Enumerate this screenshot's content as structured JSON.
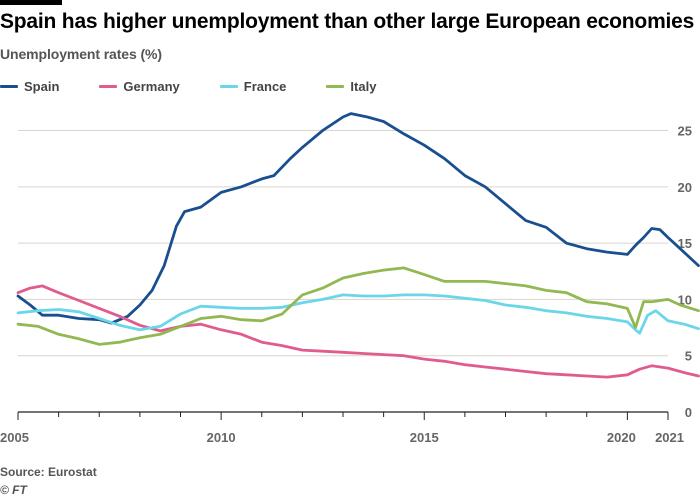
{
  "title": "Spain has higher unemployment than other large European economies",
  "subtitle": "Unemployment rates (%)",
  "source": "Source: Eurostat",
  "credit": "© FT",
  "colors": {
    "Spain": "#1a4f8f",
    "Germany": "#e05c8f",
    "France": "#6bd6e8",
    "Italy": "#93b852",
    "grid": "#d9d4cc",
    "axis": "#222222"
  },
  "chart_data": {
    "type": "line",
    "title": "Spain has higher unemployment than other large European economies",
    "ylabel": "Unemployment rates (%)",
    "xlabel": "",
    "xlim": [
      2005,
      2021
    ],
    "ylim": [
      0,
      27
    ],
    "x_ticks": [
      2005,
      2010,
      2015,
      2020,
      2021
    ],
    "y_ticks": [
      0,
      5,
      10,
      15,
      20,
      25
    ],
    "grid": "horizontal",
    "legend_position": "top",
    "series": [
      {
        "name": "Spain",
        "points": [
          [
            2005,
            10.3
          ],
          [
            2005.3,
            9.5
          ],
          [
            2005.6,
            8.6
          ],
          [
            2006,
            8.6
          ],
          [
            2006.5,
            8.3
          ],
          [
            2007,
            8.2
          ],
          [
            2007.3,
            7.9
          ],
          [
            2007.7,
            8.5
          ],
          [
            2008,
            9.5
          ],
          [
            2008.3,
            10.8
          ],
          [
            2008.6,
            13
          ],
          [
            2008.9,
            16.5
          ],
          [
            2009.1,
            17.8
          ],
          [
            2009.5,
            18.2
          ],
          [
            2010,
            19.5
          ],
          [
            2010.5,
            20
          ],
          [
            2011,
            20.7
          ],
          [
            2011.3,
            21
          ],
          [
            2011.7,
            22.5
          ],
          [
            2012,
            23.5
          ],
          [
            2012.5,
            25
          ],
          [
            2013,
            26.2
          ],
          [
            2013.2,
            26.5
          ],
          [
            2013.6,
            26.2
          ],
          [
            2014,
            25.8
          ],
          [
            2014.5,
            24.7
          ],
          [
            2015,
            23.7
          ],
          [
            2015.5,
            22.5
          ],
          [
            2016,
            21
          ],
          [
            2016.5,
            20
          ],
          [
            2017,
            18.5
          ],
          [
            2017.5,
            17
          ],
          [
            2018,
            16.4
          ],
          [
            2018.5,
            15
          ],
          [
            2019,
            14.5
          ],
          [
            2019.5,
            14.2
          ],
          [
            2020,
            14
          ],
          [
            2020.2,
            14.8
          ],
          [
            2020.4,
            15.5
          ],
          [
            2020.6,
            16.3
          ],
          [
            2020.8,
            16.2
          ],
          [
            2021,
            15.5
          ],
          [
            2021.3,
            14.5
          ],
          [
            2021.6,
            13.5
          ],
          [
            2021.75,
            13
          ]
        ]
      },
      {
        "name": "Germany",
        "points": [
          [
            2005,
            10.6
          ],
          [
            2005.3,
            11
          ],
          [
            2005.6,
            11.2
          ],
          [
            2006,
            10.6
          ],
          [
            2006.5,
            9.9
          ],
          [
            2007,
            9.2
          ],
          [
            2007.5,
            8.5
          ],
          [
            2008,
            7.7
          ],
          [
            2008.5,
            7.2
          ],
          [
            2009,
            7.6
          ],
          [
            2009.5,
            7.8
          ],
          [
            2010,
            7.3
          ],
          [
            2010.5,
            6.9
          ],
          [
            2011,
            6.2
          ],
          [
            2011.5,
            5.9
          ],
          [
            2012,
            5.5
          ],
          [
            2012.5,
            5.4
          ],
          [
            2013,
            5.3
          ],
          [
            2013.5,
            5.2
          ],
          [
            2014,
            5.1
          ],
          [
            2014.5,
            5
          ],
          [
            2015,
            4.7
          ],
          [
            2015.5,
            4.5
          ],
          [
            2016,
            4.2
          ],
          [
            2016.5,
            4
          ],
          [
            2017,
            3.8
          ],
          [
            2017.5,
            3.6
          ],
          [
            2018,
            3.4
          ],
          [
            2018.5,
            3.3
          ],
          [
            2019,
            3.2
          ],
          [
            2019.5,
            3.1
          ],
          [
            2020,
            3.3
          ],
          [
            2020.3,
            3.8
          ],
          [
            2020.6,
            4.1
          ],
          [
            2021,
            3.9
          ],
          [
            2021.4,
            3.5
          ],
          [
            2021.75,
            3.2
          ]
        ]
      },
      {
        "name": "France",
        "points": [
          [
            2005,
            8.8
          ],
          [
            2005.5,
            9
          ],
          [
            2006,
            9.1
          ],
          [
            2006.5,
            8.9
          ],
          [
            2007,
            8.3
          ],
          [
            2007.5,
            7.7
          ],
          [
            2008,
            7.3
          ],
          [
            2008.5,
            7.6
          ],
          [
            2009,
            8.7
          ],
          [
            2009.5,
            9.4
          ],
          [
            2010,
            9.3
          ],
          [
            2010.5,
            9.2
          ],
          [
            2011,
            9.2
          ],
          [
            2011.5,
            9.3
          ],
          [
            2012,
            9.7
          ],
          [
            2012.5,
            10
          ],
          [
            2013,
            10.4
          ],
          [
            2013.5,
            10.3
          ],
          [
            2014,
            10.3
          ],
          [
            2014.5,
            10.4
          ],
          [
            2015,
            10.4
          ],
          [
            2015.5,
            10.3
          ],
          [
            2016,
            10.1
          ],
          [
            2016.5,
            9.9
          ],
          [
            2017,
            9.5
          ],
          [
            2017.5,
            9.3
          ],
          [
            2018,
            9
          ],
          [
            2018.5,
            8.8
          ],
          [
            2019,
            8.5
          ],
          [
            2019.5,
            8.3
          ],
          [
            2020,
            8
          ],
          [
            2020.2,
            7.3
          ],
          [
            2020.3,
            7
          ],
          [
            2020.5,
            8.6
          ],
          [
            2020.7,
            9
          ],
          [
            2021,
            8.1
          ],
          [
            2021.4,
            7.8
          ],
          [
            2021.75,
            7.4
          ]
        ]
      },
      {
        "name": "Italy",
        "points": [
          [
            2005,
            7.8
          ],
          [
            2005.5,
            7.6
          ],
          [
            2006,
            6.9
          ],
          [
            2006.5,
            6.5
          ],
          [
            2007,
            6
          ],
          [
            2007.5,
            6.2
          ],
          [
            2008,
            6.6
          ],
          [
            2008.5,
            6.9
          ],
          [
            2009,
            7.6
          ],
          [
            2009.5,
            8.3
          ],
          [
            2010,
            8.5
          ],
          [
            2010.5,
            8.2
          ],
          [
            2011,
            8.1
          ],
          [
            2011.5,
            8.7
          ],
          [
            2012,
            10.4
          ],
          [
            2012.5,
            11
          ],
          [
            2013,
            11.9
          ],
          [
            2013.5,
            12.3
          ],
          [
            2014,
            12.6
          ],
          [
            2014.5,
            12.8
          ],
          [
            2015,
            12.2
          ],
          [
            2015.5,
            11.6
          ],
          [
            2016,
            11.6
          ],
          [
            2016.5,
            11.6
          ],
          [
            2017,
            11.4
          ],
          [
            2017.5,
            11.2
          ],
          [
            2018,
            10.8
          ],
          [
            2018.5,
            10.6
          ],
          [
            2019,
            9.8
          ],
          [
            2019.5,
            9.6
          ],
          [
            2020,
            9.2
          ],
          [
            2020.2,
            7.5
          ],
          [
            2020.4,
            9.8
          ],
          [
            2020.6,
            9.8
          ],
          [
            2021,
            10
          ],
          [
            2021.3,
            9.5
          ],
          [
            2021.75,
            9
          ]
        ]
      }
    ]
  }
}
